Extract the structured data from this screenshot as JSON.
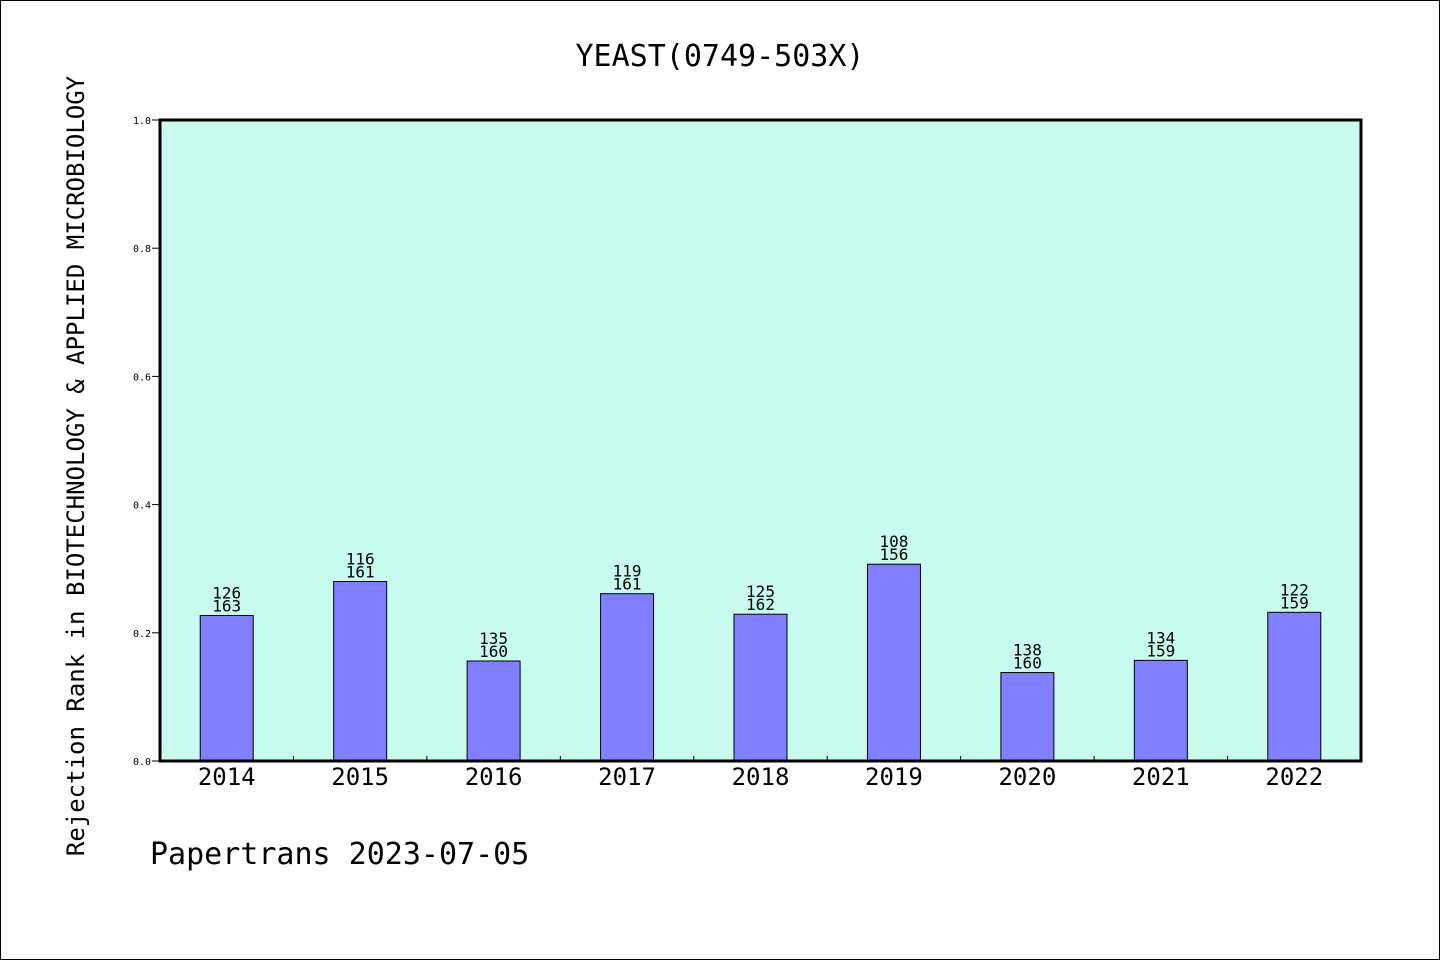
{
  "chart_data": {
    "type": "bar",
    "title": "YEAST(0749-503X)",
    "ylabel": "Rejection Rank in BIOTECHNOLOGY & APPLIED MICROBIOLOGY",
    "xlabel": "",
    "ylim": [
      0,
      1.0
    ],
    "yticks": [
      "0.0",
      "0.2",
      "0.4",
      "0.6",
      "0.8",
      "1.0"
    ],
    "categories": [
      "2014",
      "2015",
      "2016",
      "2017",
      "2018",
      "2019",
      "2020",
      "2021",
      "2022"
    ],
    "values": [
      0.227,
      0.28,
      0.156,
      0.261,
      0.229,
      0.307,
      0.138,
      0.157,
      0.232
    ],
    "labels_top": [
      "126",
      "116",
      "135",
      "119",
      "125",
      "108",
      "138",
      "134",
      "122"
    ],
    "labels_bottom": [
      "163",
      "161",
      "160",
      "161",
      "162",
      "156",
      "160",
      "159",
      "159"
    ],
    "grid": false,
    "legend": "none",
    "colors": {
      "plot_background": "#c8fcef",
      "bar": "#8080ff",
      "axis": "#000000"
    },
    "footer": "Papertrans 2023-07-05"
  }
}
